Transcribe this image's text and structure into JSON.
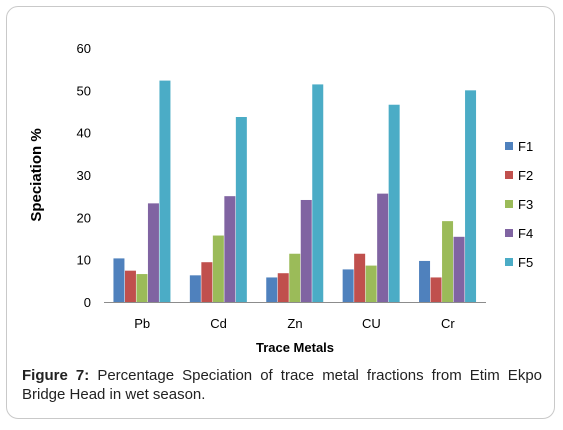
{
  "chart_data": {
    "type": "bar",
    "categories": [
      "Pb",
      "Cd",
      "Zn",
      "CU",
      "Cr"
    ],
    "series": [
      {
        "name": "F1",
        "values": [
          10.3,
          6.3,
          5.8,
          7.7,
          9.7
        ]
      },
      {
        "name": "F2",
        "values": [
          7.4,
          9.4,
          6.8,
          11.4,
          5.8
        ]
      },
      {
        "name": "F3",
        "values": [
          6.6,
          15.7,
          11.4,
          8.6,
          19.1
        ]
      },
      {
        "name": "F4",
        "values": [
          23.3,
          25.0,
          24.1,
          25.6,
          15.4
        ]
      },
      {
        "name": "F5",
        "values": [
          52.3,
          43.7,
          51.4,
          46.6,
          50.0
        ]
      }
    ],
    "title": "",
    "xlabel": "Trace Metals",
    "ylabel": "Speciation %",
    "ylim": [
      0,
      60
    ],
    "yticks": [
      0,
      10,
      20,
      30,
      40,
      50,
      60
    ],
    "grid": false,
    "legend_position": "right",
    "colors": [
      "#4f81bd",
      "#c0504d",
      "#9bbb59",
      "#8064a2",
      "#4bacc6"
    ]
  },
  "caption": {
    "label": "Figure 7:",
    "text": " Percentage Speciation of trace metal fractions from Etim Ekpo Bridge Head in wet season."
  }
}
